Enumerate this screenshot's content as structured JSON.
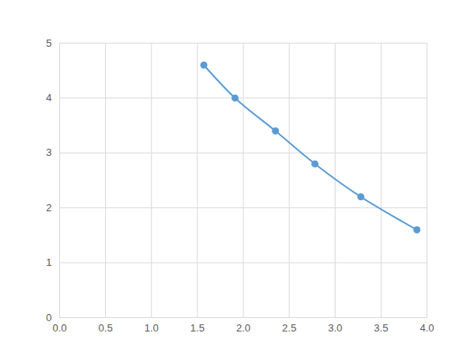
{
  "chart_data": {
    "type": "line",
    "x": [
      1.57,
      1.91,
      2.35,
      2.78,
      3.28,
      3.89
    ],
    "values": [
      4.6,
      4.0,
      3.4,
      2.8,
      2.2,
      1.6
    ],
    "color": "#5b9bd5",
    "marker": "circle",
    "xlim": [
      0,
      4
    ],
    "xticks": [
      {
        "value": 0,
        "label": "0.0"
      },
      0.5,
      {
        "value": 1,
        "label": "1.0"
      },
      1.5,
      {
        "value": 2,
        "label": "2.0"
      },
      2.5,
      {
        "value": 3,
        "label": "3.0"
      },
      3.5,
      {
        "value": 4,
        "label": "4.0"
      }
    ],
    "ylim": [
      0,
      5
    ],
    "yticks": [
      0,
      1,
      2,
      3,
      4,
      5
    ],
    "grid": true
  }
}
